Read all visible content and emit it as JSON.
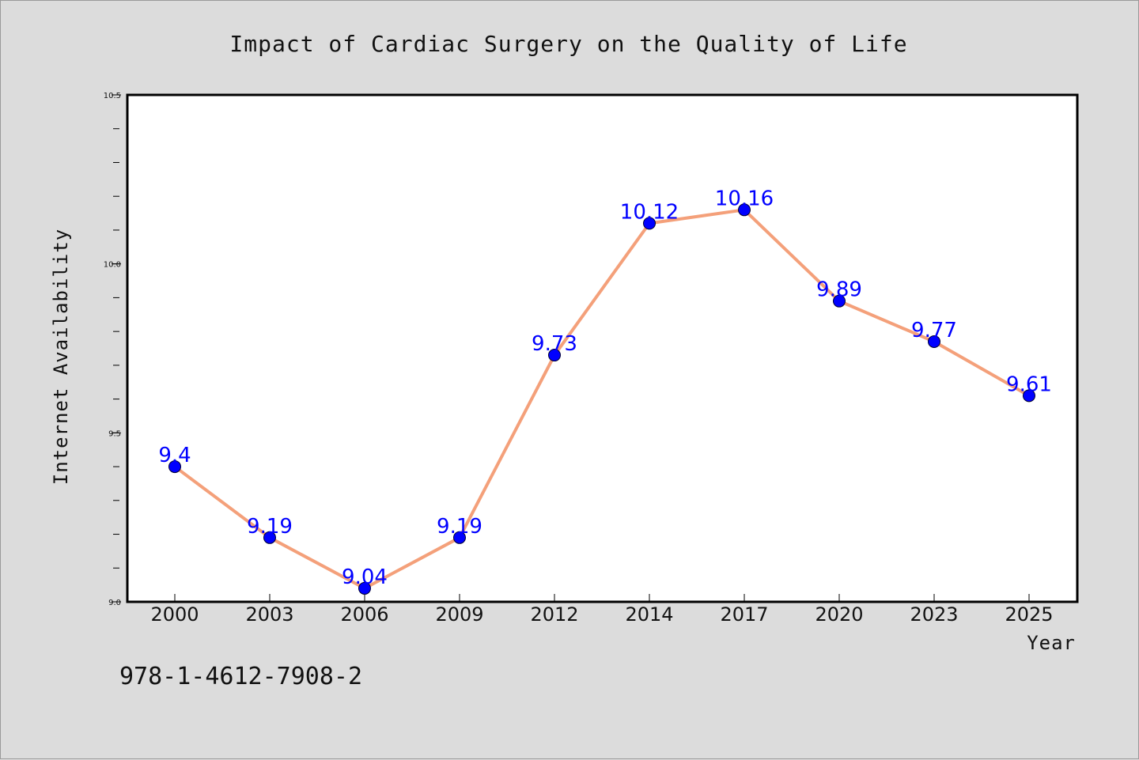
{
  "chart_data": {
    "type": "line",
    "title": "Impact of Cardiac Surgery on the Quality of Life",
    "xlabel": "Year",
    "ylabel": "Internet Availability",
    "categories": [
      "2000",
      "2003",
      "2006",
      "2009",
      "2012",
      "2014",
      "2017",
      "2020",
      "2023",
      "2025"
    ],
    "series": [
      {
        "values": [
          9.4,
          9.19,
          9.04,
          9.19,
          9.73,
          10.12,
          10.16,
          9.89,
          9.77,
          9.61
        ],
        "data_labels": [
          "9.4",
          "9.19",
          "9.04",
          "9.19",
          "9.73",
          "10.12",
          "10.16",
          "9.89",
          "9.77",
          "9.61"
        ],
        "line_color": "#f4a07a",
        "marker_color": "#0000ff"
      }
    ],
    "ylim": [
      9.0,
      10.5
    ],
    "y_ticks": [
      "9.0",
      "9.5",
      "10.0",
      "10.5"
    ],
    "y_tick_values": [
      9.0,
      9.5,
      10.0,
      10.5
    ],
    "y_minor_step": 0.1,
    "grid": false,
    "annotation": "978-1-4612-7908-2"
  },
  "colors": {
    "background": "#dcdcdc",
    "plot_background": "#ffffff",
    "label_color": "#0000ff"
  }
}
